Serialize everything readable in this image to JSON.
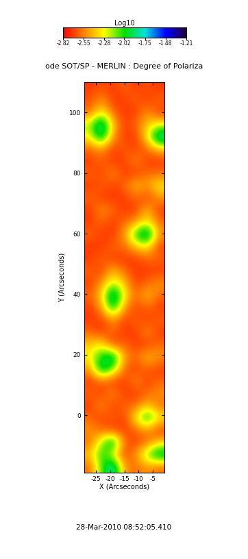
{
  "chart_data": {
    "type": "heatmap",
    "title": "ode SOT/SP - MERLIN : Degree of Polariza",
    "x_label": "X (Arcseconds)",
    "y_label": "Y (Arcseconds)",
    "xlim": [
      -29,
      -1
    ],
    "ylim": [
      -19,
      110
    ],
    "xticks": [
      -25,
      -20,
      -15,
      -10,
      -5
    ],
    "yticks": [
      0,
      20,
      40,
      60,
      80,
      100
    ],
    "colorbar": {
      "label": "Log10",
      "range": [
        -2.82,
        -1.21
      ],
      "ticks": [
        -2.82,
        -2.55,
        -2.28,
        -2.02,
        -1.75,
        -1.48,
        -1.21
      ]
    },
    "date": "28-Mar-2010 08:52:05.410",
    "cells": [
      [
        -2.7,
        -2.65,
        -2.7,
        -2.6,
        -2.7,
        -2.65,
        -2.7
      ],
      [
        -2.65,
        -2.5,
        -2.7,
        -2.7,
        -2.6,
        -2.7,
        -2.6
      ],
      [
        -2.6,
        -2.3,
        -2.6,
        -2.7,
        -2.7,
        -2.5,
        -2.7
      ],
      [
        -2.2,
        -1.7,
        -2.4,
        -2.7,
        -2.6,
        -2.4,
        -2.3
      ],
      [
        -2.3,
        -1.8,
        -2.5,
        -2.7,
        -2.7,
        -2.3,
        -1.7
      ],
      [
        -2.6,
        -2.5,
        -2.7,
        -2.6,
        -2.7,
        -2.6,
        -2.4
      ],
      [
        -2.7,
        -2.6,
        -2.7,
        -2.7,
        -2.5,
        -2.7,
        -2.7
      ],
      [
        -2.6,
        -2.7,
        -2.5,
        -2.7,
        -2.7,
        -2.6,
        -2.6
      ],
      [
        -2.7,
        -2.6,
        -2.7,
        -2.6,
        -2.4,
        -2.5,
        -2.3
      ],
      [
        -2.6,
        -2.7,
        -2.7,
        -2.7,
        -2.6,
        -2.7,
        -2.5
      ],
      [
        -2.7,
        -2.5,
        -2.6,
        -2.7,
        -2.7,
        -2.4,
        -2.7
      ],
      [
        -2.7,
        -2.6,
        -2.7,
        -2.6,
        -2.5,
        -2.3,
        -2.6
      ],
      [
        -2.6,
        -2.7,
        -2.7,
        -2.5,
        -2.0,
        -1.7,
        -2.5
      ],
      [
        -2.7,
        -2.7,
        -2.6,
        -2.6,
        -2.4,
        -2.3,
        -2.7
      ],
      [
        -2.7,
        -2.6,
        -2.7,
        -2.7,
        -2.7,
        -2.6,
        -2.6
      ],
      [
        -2.6,
        -2.7,
        -2.4,
        -2.6,
        -2.7,
        -2.7,
        -2.7
      ],
      [
        -2.7,
        -2.5,
        -2.2,
        -2.4,
        -2.7,
        -2.6,
        -2.5
      ],
      [
        -2.6,
        -2.4,
        -1.7,
        -2.3,
        -2.6,
        -2.4,
        -2.6
      ],
      [
        -2.7,
        -2.5,
        -1.9,
        -2.5,
        -2.7,
        -2.6,
        -2.7
      ],
      [
        -2.7,
        -2.7,
        -2.5,
        -2.7,
        -2.6,
        -2.7,
        -2.6
      ],
      [
        -2.6,
        -2.7,
        -2.6,
        -2.7,
        -2.7,
        -2.5,
        -2.7
      ],
      [
        -2.4,
        -2.3,
        -2.7,
        -2.6,
        -2.7,
        -2.7,
        -2.6
      ],
      [
        -2.3,
        -2.0,
        -1.8,
        -2.5,
        -2.6,
        -2.4,
        -2.5
      ],
      [
        -2.5,
        -1.8,
        -2.1,
        -2.6,
        -2.7,
        -2.6,
        -2.7
      ],
      [
        -2.7,
        -2.6,
        -2.7,
        -2.7,
        -2.5,
        -2.7,
        -2.6
      ],
      [
        -2.6,
        -2.7,
        -2.5,
        -2.7,
        -2.7,
        -2.6,
        -2.5
      ],
      [
        -2.7,
        -2.5,
        -2.7,
        -2.6,
        -2.6,
        -2.4,
        -2.6
      ],
      [
        -2.6,
        -2.7,
        -2.6,
        -2.7,
        -2.3,
        -1.9,
        -2.3
      ],
      [
        -2.5,
        -2.6,
        -2.7,
        -2.7,
        -2.6,
        -2.5,
        -2.7
      ],
      [
        -2.6,
        -2.2,
        -1.8,
        -2.6,
        -2.7,
        -2.6,
        -2.4
      ],
      [
        -2.4,
        -2.0,
        -2.3,
        -2.7,
        -2.5,
        -2.1,
        -1.8
      ],
      [
        -2.6,
        -2.1,
        -1.7,
        -2.5,
        -2.6,
        -2.5,
        -2.6
      ]
    ]
  }
}
